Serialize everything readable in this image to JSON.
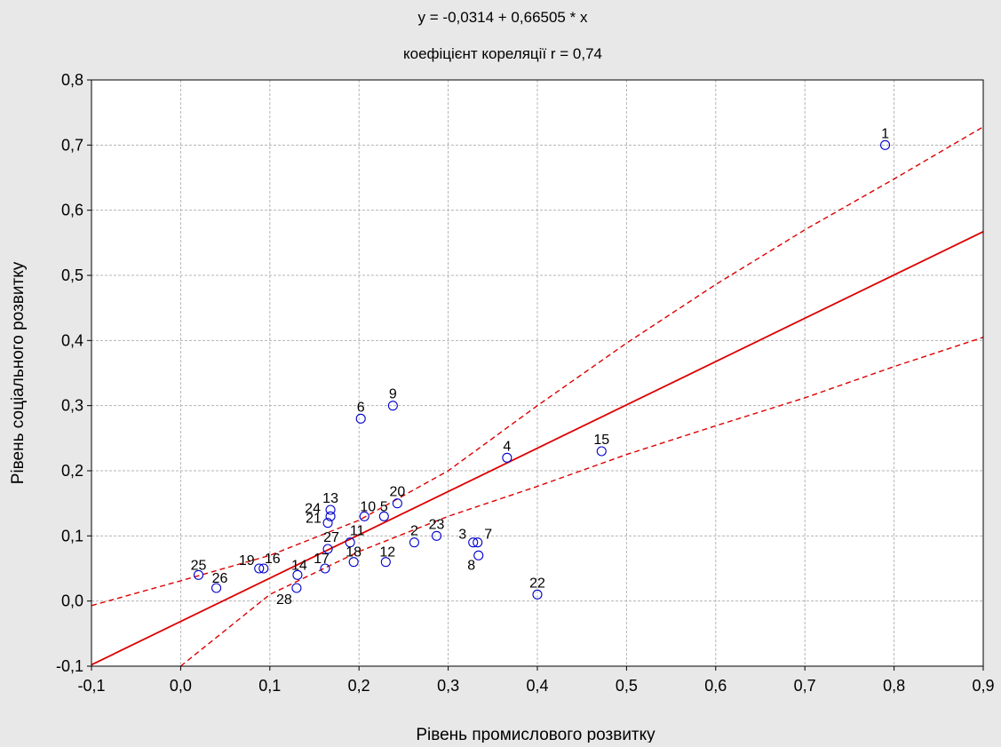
{
  "chart_data": {
    "type": "scatter",
    "title": "y = -0,0314 + 0,66505 * x",
    "subtitle": "коефіцієнт кореляції r = 0,74",
    "xlabel": "Рівень промислового розвитку",
    "ylabel": "Рівень соціального розвитку",
    "xlim": [
      -0.1,
      0.9
    ],
    "ylim": [
      -0.1,
      0.8
    ],
    "x_ticks": [
      "-0,1",
      "0,0",
      "0,1",
      "0,2",
      "0,3",
      "0,4",
      "0,5",
      "0,6",
      "0,7",
      "0,8",
      "0,9"
    ],
    "y_ticks": [
      "-0,1",
      "0,0",
      "0,1",
      "0,2",
      "0,3",
      "0,4",
      "0,5",
      "0,6",
      "0,7",
      "0,8"
    ],
    "grid": true,
    "regression": {
      "intercept": -0.0314,
      "slope": 0.66505,
      "r": 0.74
    },
    "confidence_band": {
      "upper": [
        [
          -0.1,
          -0.007
        ],
        [
          0.0,
          0.031
        ],
        [
          0.1,
          0.07
        ],
        [
          0.2,
          0.124
        ],
        [
          0.3,
          0.2
        ],
        [
          0.4,
          0.3
        ],
        [
          0.5,
          0.396
        ],
        [
          0.6,
          0.486
        ],
        [
          0.7,
          0.57
        ],
        [
          0.8,
          0.648
        ],
        [
          0.9,
          0.728
        ]
      ],
      "lower": [
        [
          0.0,
          -0.1
        ],
        [
          0.1,
          0.01
        ],
        [
          0.2,
          0.076
        ],
        [
          0.3,
          0.13
        ],
        [
          0.4,
          0.176
        ],
        [
          0.5,
          0.225
        ],
        [
          0.6,
          0.269
        ],
        [
          0.7,
          0.312
        ],
        [
          0.8,
          0.36
        ],
        [
          0.9,
          0.405
        ]
      ]
    },
    "points": [
      {
        "label": "1",
        "x": 0.79,
        "y": 0.7
      },
      {
        "label": "2",
        "x": 0.262,
        "y": 0.09
      },
      {
        "label": "3",
        "x": 0.328,
        "y": 0.09
      },
      {
        "label": "4",
        "x": 0.366,
        "y": 0.22
      },
      {
        "label": "5",
        "x": 0.228,
        "y": 0.13
      },
      {
        "label": "6",
        "x": 0.202,
        "y": 0.28
      },
      {
        "label": "7",
        "x": 0.333,
        "y": 0.09
      },
      {
        "label": "8",
        "x": 0.334,
        "y": 0.07
      },
      {
        "label": "9",
        "x": 0.238,
        "y": 0.3
      },
      {
        "label": "10",
        "x": 0.206,
        "y": 0.13
      },
      {
        "label": "11",
        "x": 0.19,
        "y": 0.09
      },
      {
        "label": "12",
        "x": 0.23,
        "y": 0.06
      },
      {
        "label": "13",
        "x": 0.168,
        "y": 0.14
      },
      {
        "label": "14",
        "x": 0.131,
        "y": 0.04
      },
      {
        "label": "15",
        "x": 0.472,
        "y": 0.23
      },
      {
        "label": "16",
        "x": 0.093,
        "y": 0.05
      },
      {
        "label": "17",
        "x": 0.162,
        "y": 0.05
      },
      {
        "label": "18",
        "x": 0.194,
        "y": 0.06
      },
      {
        "label": "19",
        "x": 0.088,
        "y": 0.05
      },
      {
        "label": "20",
        "x": 0.243,
        "y": 0.15
      },
      {
        "label": "21",
        "x": 0.165,
        "y": 0.12
      },
      {
        "label": "22",
        "x": 0.4,
        "y": 0.01
      },
      {
        "label": "23",
        "x": 0.287,
        "y": 0.1
      },
      {
        "label": "24",
        "x": 0.168,
        "y": 0.13
      },
      {
        "label": "25",
        "x": 0.02,
        "y": 0.04
      },
      {
        "label": "26",
        "x": 0.04,
        "y": 0.02
      },
      {
        "label": "27",
        "x": 0.165,
        "y": 0.08
      },
      {
        "label": "28",
        "x": 0.13,
        "y": 0.02
      }
    ],
    "colors": {
      "points": "#0000cc",
      "regression": "#dd0000",
      "grid": "#b4b4b4",
      "background": "#e8e8e8",
      "plot_area": "#ffffff"
    }
  }
}
